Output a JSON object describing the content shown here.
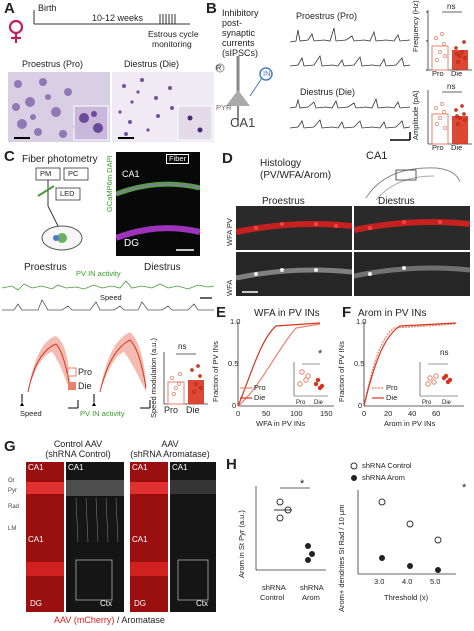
{
  "panel_a": {
    "label": "A",
    "birth": "Birth",
    "weeks": "10-12 weeks",
    "estrous": "Estrous cycle",
    "monitoring": "monitoring",
    "proestrus": "Proestrus (Pro)",
    "diestrus": "Diestrus (Die)"
  },
  "panel_b": {
    "label": "B",
    "title_lines": [
      "Inhibitory",
      "post-",
      "synaptic",
      "currents",
      "(sIPSCs)"
    ],
    "proestrus": "Proestrus (Pro)",
    "diestrus": "Diestrus (Die)",
    "pyr": "PYR",
    "in": "IN",
    "r": "R",
    "ca1": "CA1",
    "freq_ylabel": "Frequency (Hz)",
    "amp_ylabel": "Amplitude (pA)",
    "ns": "ns",
    "pro": "Pro",
    "die": "Die"
  },
  "panel_c": {
    "label": "C",
    "title": "Fiber photometry",
    "pm": "PM",
    "pc": "PC",
    "led": "LED",
    "fiber": "Fiber",
    "stain": "GCaMP6m DAPI",
    "ca1": "CA1",
    "dg": "DG",
    "proestrus": "Proestrus",
    "diestrus": "Diestrus",
    "pv_activity": "PV IN activity",
    "speed": "Speed",
    "pro": "Pro",
    "die": "Die",
    "speed_x": "Speed",
    "pv_x": "PV IN activity",
    "ns": "ns",
    "mod_ylabel": "Speed modulation (a.u.)"
  },
  "panel_d": {
    "label": "D",
    "title": "Histology",
    "subtitle": "(PV/WFA/Arom)",
    "ca1": "CA1",
    "proestrus": "Proestrus",
    "diestrus": "Diestrus",
    "row1": "WFA PV",
    "row2": "WFA"
  },
  "panel_e": {
    "label": "E",
    "title": "WFA in PV INs",
    "ylabel": "Fraction of PV INs",
    "xlabel": "WFA in PV INs",
    "yticks": [
      "0",
      "0.5",
      "1.0"
    ],
    "xticks": [
      "0",
      "50",
      "100",
      "150"
    ],
    "legend": [
      "Pro",
      "Die"
    ],
    "star": "*",
    "inset_x": [
      "Pro",
      "Die"
    ]
  },
  "panel_f": {
    "label": "F",
    "title": "Arom in PV INs",
    "ylabel": "Fraction of PV INs",
    "xlabel": "Arom in PV INs",
    "yticks": [
      "0",
      "0.5",
      "1.0"
    ],
    "xticks": [
      "0",
      "20",
      "40",
      "60"
    ],
    "legend": [
      "Pro",
      "Die"
    ],
    "ns": "ns",
    "inset_x": [
      "Pro",
      "Die"
    ],
    "inset_xticks": [
      "0",
      "40",
      "80"
    ]
  },
  "panel_g": {
    "label": "G",
    "control_title": "Control AAV",
    "control_sub": "(shRNA Control)",
    "arom_title": "AAV",
    "arom_sub": "(shRNA Aromatase)",
    "ca1": "CA1",
    "dg": "DG",
    "ctx": "Ctx",
    "layers": [
      "Or",
      "Pyr",
      "Rad",
      "LM"
    ],
    "footer_a": "AAV (mCherry)",
    "footer_b": " / Aromatase"
  },
  "panel_h": {
    "label": "H",
    "ylabel": "Arom in St Pyr (a.u.)",
    "x1": "shRNA",
    "x1b": "Control",
    "x2": "shRNA",
    "x2b": "Arom",
    "star": "*",
    "legend1": "shRNA Control",
    "legend2": "shRNA Arom",
    "ylabel2": "Arom+ dendrites St Rad / 10 μm",
    "xlabel2": "Threshold (x)",
    "thresholds": [
      "3.0",
      "4.0",
      "5.0"
    ]
  },
  "colors": {
    "pro": "#e8806a",
    "die": "#d9341f",
    "green": "#4a9a3a",
    "red": "#d81e1e"
  }
}
